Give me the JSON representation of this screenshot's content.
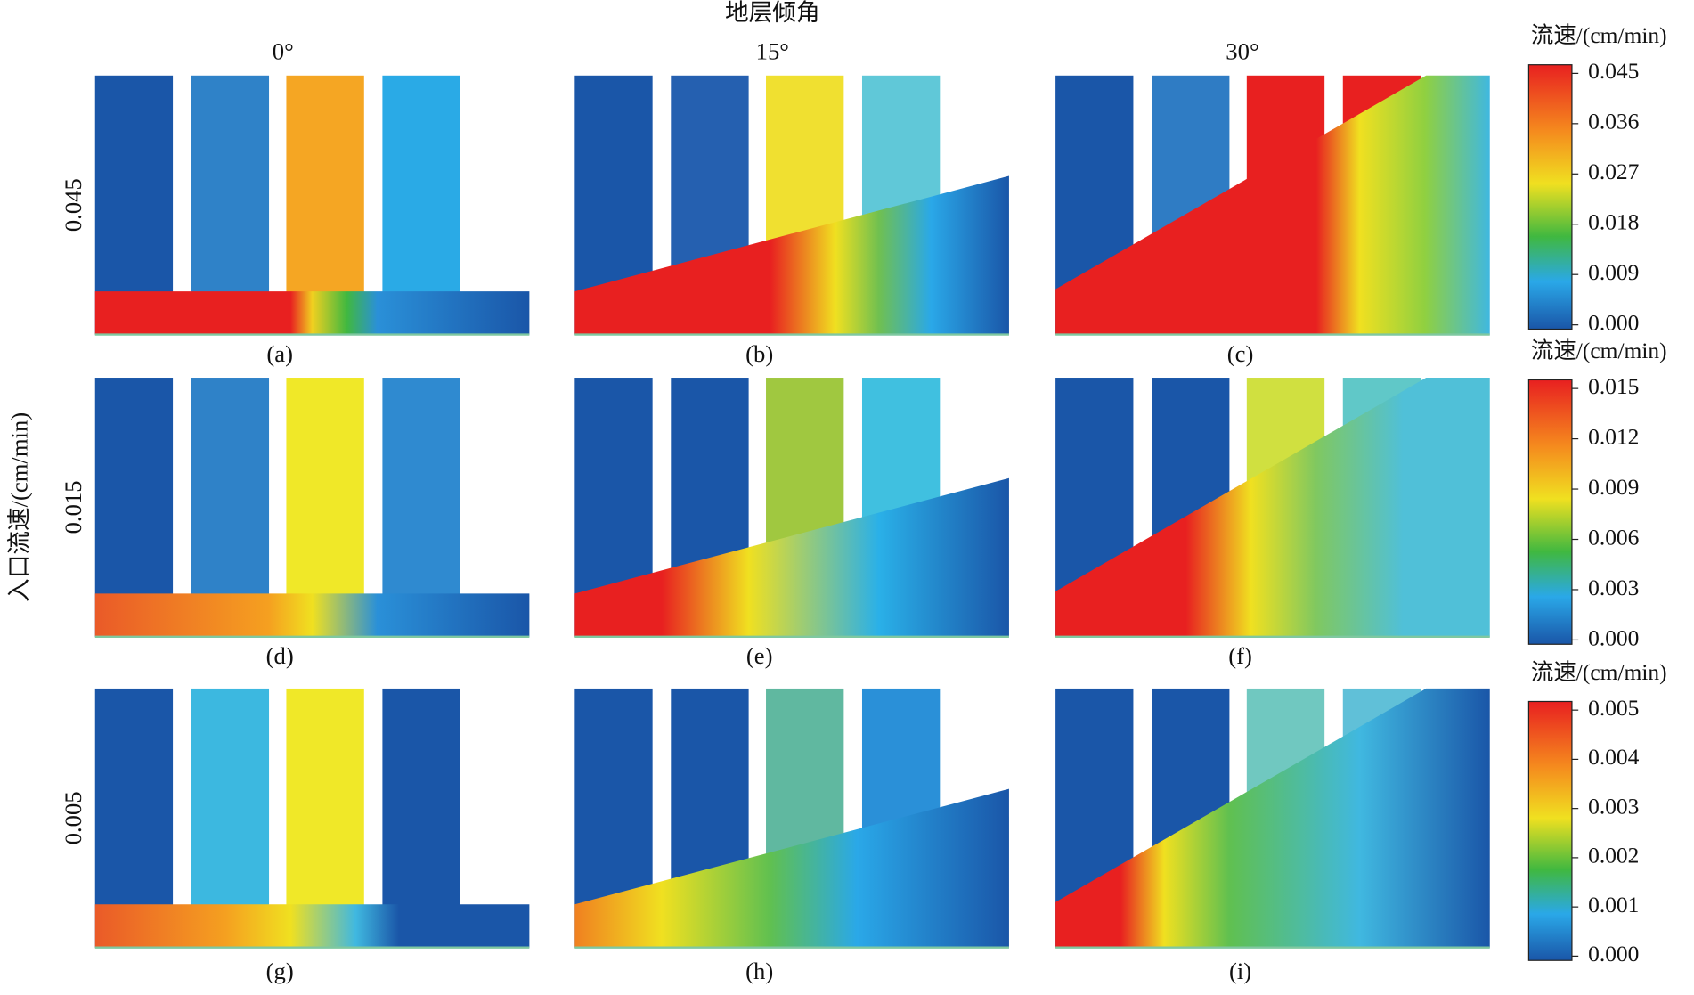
{
  "figure": {
    "title": "地层倾角",
    "column_labels": [
      "0°",
      "15°",
      "30°"
    ],
    "y_label": "入口流速/(cm/min)",
    "row_labels": [
      "0.045",
      "0.015",
      "0.005"
    ],
    "panels": [
      "(a)",
      "(b)",
      "(c)",
      "(d)",
      "(e)",
      "(f)",
      "(g)",
      "(h)",
      "(i)"
    ],
    "colorbars": [
      {
        "title": "流速/(cm/min)",
        "ticks": [
          "0.045",
          "0.036",
          "0.027",
          "0.018",
          "0.009",
          "0.000"
        ]
      },
      {
        "title": "流速/(cm/min)",
        "ticks": [
          "0.015",
          "0.012",
          "0.009",
          "0.006",
          "0.003",
          "0.000"
        ]
      },
      {
        "title": "流速/(cm/min)",
        "ticks": [
          "0.005",
          "0.004",
          "0.003",
          "0.002",
          "0.001",
          "0.000"
        ]
      }
    ]
  }
}
